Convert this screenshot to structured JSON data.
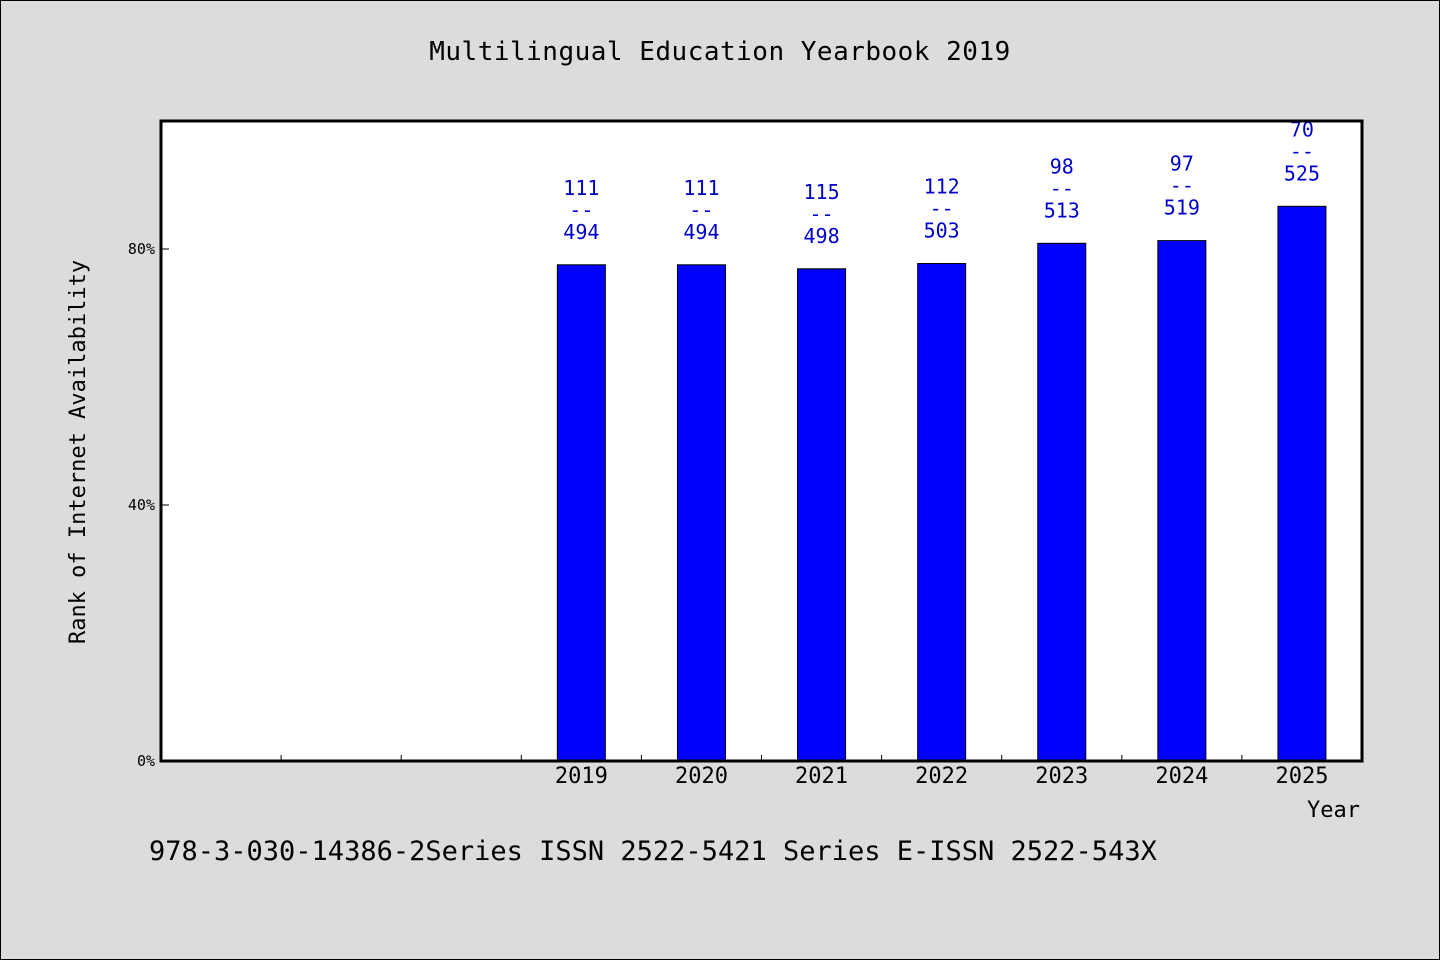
{
  "chart_data": {
    "type": "bar",
    "title": "Multilingual Education Yearbook 2019",
    "xlabel": "Year",
    "ylabel": "Rank of Internet Availability",
    "categories": [
      "",
      "",
      "",
      "2019",
      "2020",
      "2021",
      "2022",
      "2023",
      "2024",
      "2025"
    ],
    "values": [
      null,
      null,
      null,
      77.53,
      77.53,
      76.91,
      77.73,
      80.89,
      81.31,
      86.67
    ],
    "value_labels": [
      null,
      null,
      null,
      {
        "top": "111",
        "sep": "--",
        "bottom": "494"
      },
      {
        "top": "111",
        "sep": "--",
        "bottom": "494"
      },
      {
        "top": "115",
        "sep": "--",
        "bottom": "498"
      },
      {
        "top": "112",
        "sep": "--",
        "bottom": "503"
      },
      {
        "top": "98",
        "sep": "--",
        "bottom": "513"
      },
      {
        "top": "97",
        "sep": "--",
        "bottom": "519"
      },
      {
        "top": "70",
        "sep": "--",
        "bottom": "525"
      }
    ],
    "yticks": [
      {
        "value": 0,
        "label": "0%"
      },
      {
        "value": 40,
        "label": "40%"
      },
      {
        "value": 80,
        "label": "80%"
      }
    ],
    "ylim": [
      0,
      100
    ],
    "grid": false,
    "legend": "none",
    "bar_color": "#0000ff",
    "label_color": "#0000cc"
  },
  "footer": {
    "text": "978-3-030-14386-2Series ISSN 2522-5421 Series E-ISSN 2522-543X"
  }
}
